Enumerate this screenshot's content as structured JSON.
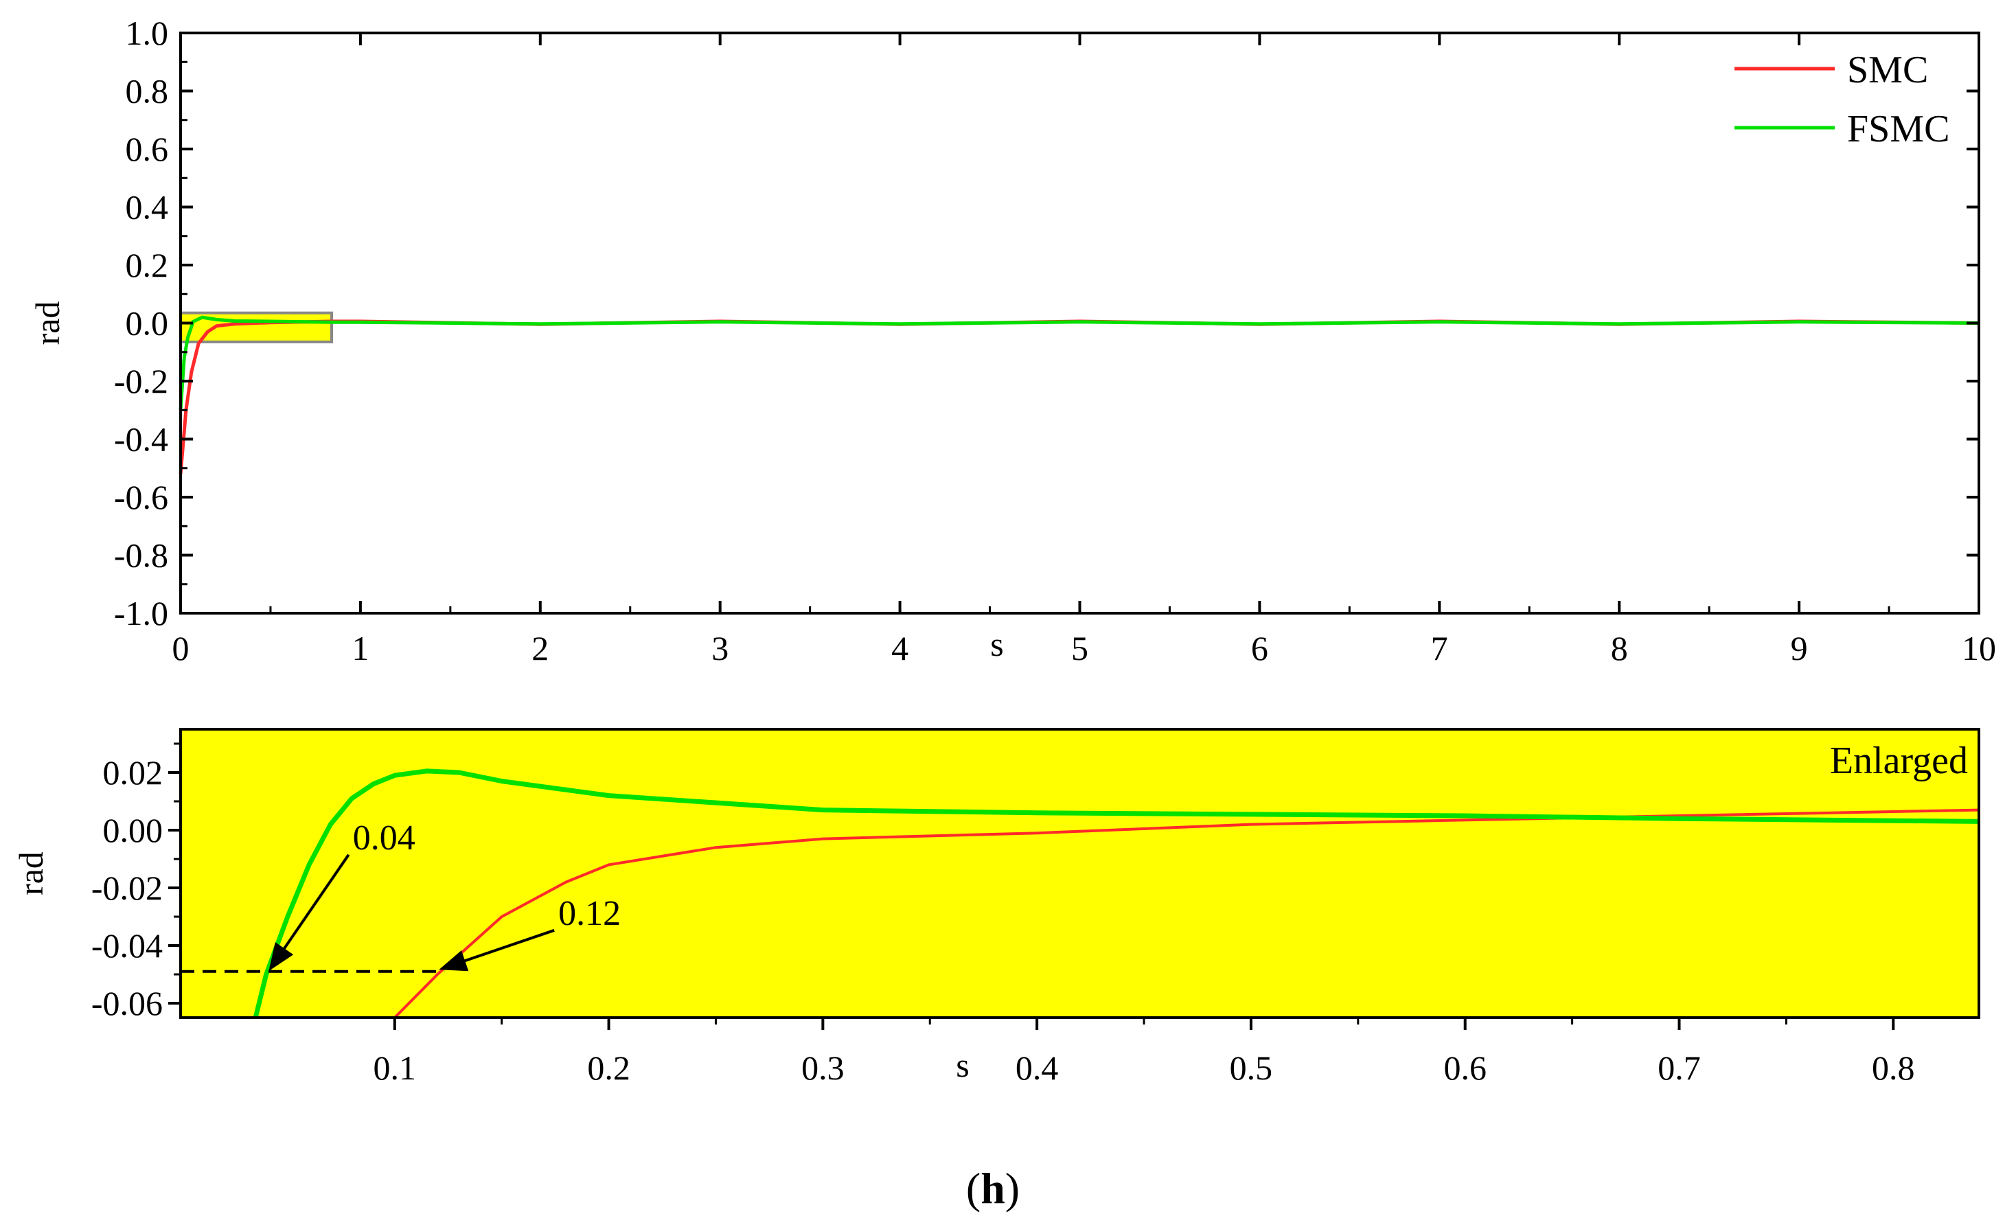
{
  "chart_data": [
    {
      "type": "line",
      "panel": "main",
      "xlabel": "s",
      "ylabel": "rad",
      "xlim": [
        0,
        10
      ],
      "ylim": [
        -1.0,
        1.0
      ],
      "x_ticks": [
        "0",
        "1",
        "2",
        "3",
        "4",
        "5",
        "6",
        "7",
        "8",
        "9",
        "10"
      ],
      "y_ticks": [
        "1.0",
        "0.8",
        "0.6",
        "0.4",
        "0.2",
        "0.0",
        "-0.2",
        "-0.4",
        "-0.6",
        "-0.8",
        "-1.0"
      ],
      "legend_position": "top-right",
      "grid": false,
      "highlight_region": {
        "x": [
          0,
          0.84
        ],
        "y": [
          -0.065,
          0.035
        ],
        "color": "#ffff00"
      },
      "series": [
        {
          "name": "SMC",
          "color": "#ff2a2a",
          "points": [
            [
              0,
              -0.52
            ],
            [
              0.03,
              -0.3
            ],
            [
              0.06,
              -0.17
            ],
            [
              0.1,
              -0.07
            ],
            [
              0.15,
              -0.03
            ],
            [
              0.2,
              -0.01
            ],
            [
              0.3,
              -0.003
            ],
            [
              0.5,
              0.002
            ],
            [
              0.84,
              0.006
            ],
            [
              1,
              0.006
            ],
            [
              2,
              -0.004
            ],
            [
              3,
              0.006
            ],
            [
              4,
              -0.004
            ],
            [
              5,
              0.006
            ],
            [
              6,
              -0.004
            ],
            [
              7,
              0.006
            ],
            [
              8,
              -0.004
            ],
            [
              9,
              0.006
            ],
            [
              10,
              0.0
            ]
          ]
        },
        {
          "name": "FSMC",
          "color": "#00e000",
          "points": [
            [
              0,
              -0.3
            ],
            [
              0.02,
              -0.12
            ],
            [
              0.04,
              -0.05
            ],
            [
              0.07,
              0.005
            ],
            [
              0.12,
              0.02
            ],
            [
              0.2,
              0.012
            ],
            [
              0.3,
              0.007
            ],
            [
              0.5,
              0.006
            ],
            [
              0.84,
              0.003
            ],
            [
              1,
              0.003
            ],
            [
              2,
              -0.003
            ],
            [
              3,
              0.004
            ],
            [
              4,
              -0.003
            ],
            [
              5,
              0.004
            ],
            [
              6,
              -0.003
            ],
            [
              7,
              0.004
            ],
            [
              8,
              -0.003
            ],
            [
              9,
              0.004
            ],
            [
              10,
              0.0
            ]
          ]
        }
      ]
    },
    {
      "type": "line",
      "panel": "enlarged",
      "title": "Enlarged",
      "xlabel": "s",
      "ylabel": "rad",
      "xlim": [
        0,
        0.84
      ],
      "ylim": [
        -0.065,
        0.035
      ],
      "x_ticks": [
        "0.1",
        "0.2",
        "0.3",
        "0.4",
        "0.5",
        "0.6",
        "0.7",
        "0.8"
      ],
      "y_ticks": [
        "0.02",
        "0.00",
        "-0.02",
        "-0.04",
        "-0.06"
      ],
      "background": "#ffff00",
      "reference_line": {
        "y": -0.049,
        "x": [
          0,
          0.12
        ],
        "style": "dashed"
      },
      "annotations": [
        {
          "text": "0.04",
          "x": 0.04,
          "y": -0.049
        },
        {
          "text": "0.12",
          "x": 0.12,
          "y": -0.049
        }
      ],
      "series": [
        {
          "name": "SMC",
          "color": "#ff2a2a",
          "points": [
            [
              0.1,
              -0.065
            ],
            [
              0.12,
              -0.05
            ],
            [
              0.15,
              -0.03
            ],
            [
              0.18,
              -0.018
            ],
            [
              0.2,
              -0.012
            ],
            [
              0.25,
              -0.006
            ],
            [
              0.3,
              -0.003
            ],
            [
              0.4,
              -0.001
            ],
            [
              0.5,
              0.002
            ],
            [
              0.6,
              0.0035
            ],
            [
              0.7,
              0.005
            ],
            [
              0.84,
              0.007
            ]
          ]
        },
        {
          "name": "FSMC",
          "color": "#00e000",
          "points": [
            [
              0.035,
              -0.065
            ],
            [
              0.04,
              -0.05
            ],
            [
              0.05,
              -0.03
            ],
            [
              0.06,
              -0.012
            ],
            [
              0.07,
              0.002
            ],
            [
              0.08,
              0.011
            ],
            [
              0.09,
              0.016
            ],
            [
              0.1,
              0.019
            ],
            [
              0.115,
              0.0205
            ],
            [
              0.13,
              0.02
            ],
            [
              0.15,
              0.017
            ],
            [
              0.2,
              0.012
            ],
            [
              0.3,
              0.007
            ],
            [
              0.4,
              0.006
            ],
            [
              0.5,
              0.0055
            ],
            [
              0.6,
              0.005
            ],
            [
              0.7,
              0.004
            ],
            [
              0.84,
              0.003
            ]
          ]
        }
      ]
    }
  ],
  "caption": {
    "open": "(",
    "letter": "h",
    "close": ")"
  }
}
